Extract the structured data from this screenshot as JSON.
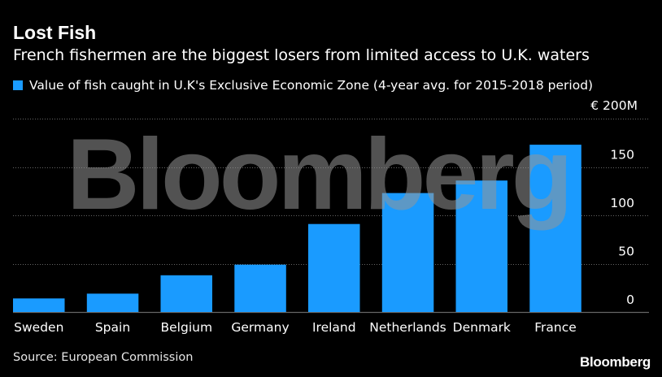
{
  "header": {
    "title": "Lost Fish",
    "subtitle": "French fishermen are the biggest losers from limited access to U.K. waters"
  },
  "legend": {
    "label": "Value of fish caught in U.K's Exclusive Economic Zone (4-year avg. for 2015-2018 period)",
    "color": "#1a9bff"
  },
  "unit_label": "€ 200M",
  "footer": {
    "source": "Source: European Commission",
    "brand": "Bloomberg"
  },
  "watermark": "Bloomberg",
  "chart_data": {
    "type": "bar",
    "categories": [
      "Sweden",
      "Spain",
      "Belgium",
      "Germany",
      "Ireland",
      "Netherlands",
      "Denmark",
      "France"
    ],
    "values": [
      14,
      19,
      38,
      49,
      91,
      123,
      136,
      173
    ],
    "ylim": [
      0,
      200
    ],
    "yticks": [
      0,
      50,
      100,
      150
    ],
    "ytick_labels": [
      "0",
      "50",
      "100",
      "150"
    ],
    "grid": true,
    "bar_color": "#1a9bff",
    "grid_color": "#666666"
  }
}
